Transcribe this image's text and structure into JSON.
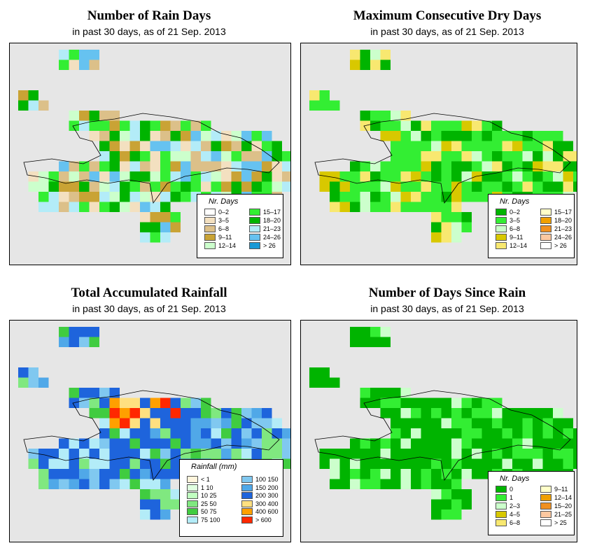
{
  "panels": [
    {
      "title": "Number of Rain Days",
      "subtitle": "in past 30 days, as of  21 Sep. 2013",
      "legend": {
        "title": "Nr. Days",
        "items": [
          {
            "label": "0–2",
            "color": "#ffffff"
          },
          {
            "label": "3–5",
            "color": "#f3e0c0"
          },
          {
            "label": "6–8",
            "color": "#dcc089"
          },
          {
            "label": "9–11",
            "color": "#c9a335"
          },
          {
            "label": "12–14",
            "color": "#ccffcc"
          },
          {
            "label": "15–17",
            "color": "#33ee33"
          },
          {
            "label": "18–20",
            "color": "#00b400"
          },
          {
            "label": "21–23",
            "color": "#b3ecf8"
          },
          {
            "label": "24–26",
            "color": "#66c2f0"
          },
          {
            "label": "> 26",
            "color": "#1899d6"
          }
        ]
      }
    },
    {
      "title": "Maximum Consecutive Dry Days",
      "subtitle": "in past 30 days, as of  21 Sep. 2013",
      "legend": {
        "title": "Nr. Days",
        "items": [
          {
            "label": "0–2",
            "color": "#00b400"
          },
          {
            "label": "3–5",
            "color": "#33ee33"
          },
          {
            "label": "6–8",
            "color": "#ccffcc"
          },
          {
            "label": "9–11",
            "color": "#d8c800"
          },
          {
            "label": "12–14",
            "color": "#f8e870"
          },
          {
            "label": "15–17",
            "color": "#ffffc8"
          },
          {
            "label": "18–20",
            "color": "#f0a000"
          },
          {
            "label": "21–23",
            "color": "#f09020"
          },
          {
            "label": "24–26",
            "color": "#fcc8a0"
          },
          {
            "label": "> 26",
            "color": "#ffffff"
          }
        ]
      }
    },
    {
      "title": "Total Accumulated Rainfall",
      "subtitle": "in past 30 days, as of  21 Sep. 2013",
      "legend": {
        "title": "Rainfall (mm)",
        "items": [
          {
            "label": "< 1",
            "color": "#fff5dc"
          },
          {
            "label": "1    10",
            "color": "#e0ffe0"
          },
          {
            "label": "10    25",
            "color": "#c0ffc0"
          },
          {
            "label": "25    50",
            "color": "#80e880"
          },
          {
            "label": "50    75",
            "color": "#40cc40"
          },
          {
            "label": "75  100",
            "color": "#b3ecf8"
          },
          {
            "label": "100  150",
            "color": "#80c8f0"
          },
          {
            "label": "150  200",
            "color": "#50a8e8"
          },
          {
            "label": "200  300",
            "color": "#1e64dc"
          },
          {
            "label": "300  400",
            "color": "#ffe080"
          },
          {
            "label": "400  600",
            "color": "#ffa000"
          },
          {
            "label": "> 600",
            "color": "#ff2800"
          }
        ]
      }
    },
    {
      "title": "Number of Days Since Rain",
      "subtitle": "in past 30 days, as of  21 Sep. 2013",
      "legend": {
        "title": "Nr. Days",
        "items": [
          {
            "label": "0",
            "color": "#00b400"
          },
          {
            "label": "1",
            "color": "#33ee33"
          },
          {
            "label": "2–3",
            "color": "#ccffcc"
          },
          {
            "label": "4–5",
            "color": "#d8c800"
          },
          {
            "label": "6–8",
            "color": "#f8e870"
          },
          {
            "label": "9–11",
            "color": "#ffffc8"
          },
          {
            "label": "12–14",
            "color": "#f0a000"
          },
          {
            "label": "15–20",
            "color": "#f09020"
          },
          {
            "label": "21–25",
            "color": "#fcc8a0"
          },
          {
            "label": "> 25",
            "color": "#ffffff"
          }
        ]
      }
    }
  ]
}
